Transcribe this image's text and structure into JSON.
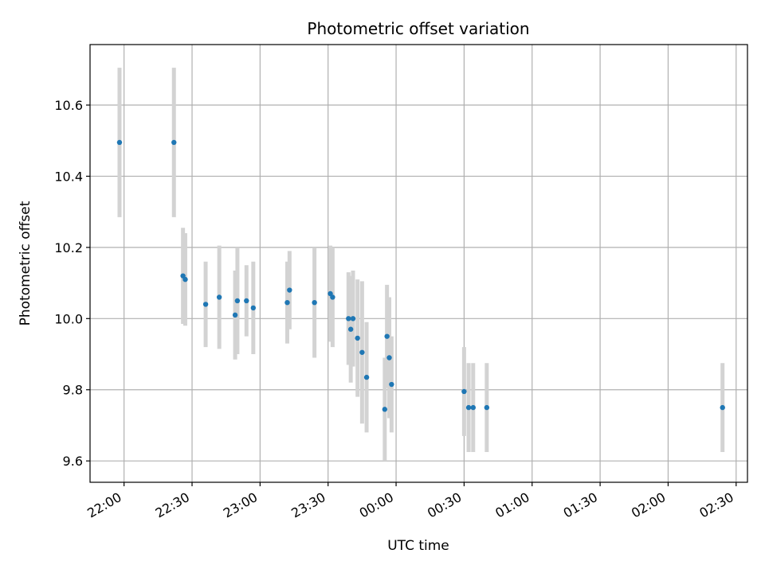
{
  "chart_data": {
    "type": "scatter",
    "title": "Photometric offset variation",
    "xlabel": "UTC time",
    "ylabel": "Photometric offset",
    "x_ticks": [
      "22:00",
      "22:30",
      "23:00",
      "23:30",
      "00:00",
      "00:30",
      "01:00",
      "01:30",
      "02:00",
      "02:30"
    ],
    "y_ticks": [
      "9.6",
      "9.8",
      "10.0",
      "10.2",
      "10.4",
      "10.6"
    ],
    "xlim": [
      "21:45",
      "02:35"
    ],
    "ylim": [
      9.54,
      10.77
    ],
    "grid": true,
    "colors": {
      "point": "#1f77b4",
      "errorbar": "#d3d3d3",
      "grid": "#b0b0b0"
    },
    "points": [
      {
        "x": "21:58",
        "y": 10.495,
        "err": 0.21
      },
      {
        "x": "22:22",
        "y": 10.495,
        "err": 0.21
      },
      {
        "x": "22:26",
        "y": 10.12,
        "err": 0.135
      },
      {
        "x": "22:27",
        "y": 10.11,
        "err": 0.13
      },
      {
        "x": "22:36",
        "y": 10.04,
        "err": 0.12
      },
      {
        "x": "22:42",
        "y": 10.06,
        "err": 0.145
      },
      {
        "x": "22:49",
        "y": 10.01,
        "err": 0.125
      },
      {
        "x": "22:50",
        "y": 10.05,
        "err": 0.15
      },
      {
        "x": "22:54",
        "y": 10.05,
        "err": 0.1
      },
      {
        "x": "22:57",
        "y": 10.03,
        "err": 0.13
      },
      {
        "x": "23:12",
        "y": 10.045,
        "err": 0.115
      },
      {
        "x": "23:13",
        "y": 10.08,
        "err": 0.11
      },
      {
        "x": "23:24",
        "y": 10.045,
        "err": 0.155
      },
      {
        "x": "23:31",
        "y": 10.07,
        "err": 0.135
      },
      {
        "x": "23:32",
        "y": 10.06,
        "err": 0.14
      },
      {
        "x": "23:39",
        "y": 10.0,
        "err": 0.13
      },
      {
        "x": "23:40",
        "y": 9.97,
        "err": 0.15
      },
      {
        "x": "23:41",
        "y": 10.0,
        "err": 0.135
      },
      {
        "x": "23:43",
        "y": 9.945,
        "err": 0.165
      },
      {
        "x": "23:45",
        "y": 9.905,
        "err": 0.2
      },
      {
        "x": "23:47",
        "y": 9.835,
        "err": 0.155
      },
      {
        "x": "23:55",
        "y": 9.745,
        "err": 0.145
      },
      {
        "x": "23:56",
        "y": 9.95,
        "err": 0.145
      },
      {
        "x": "23:57",
        "y": 9.89,
        "err": 0.17
      },
      {
        "x": "23:58",
        "y": 9.815,
        "err": 0.135
      },
      {
        "x": "00:30",
        "y": 9.795,
        "err": 0.125
      },
      {
        "x": "00:32",
        "y": 9.75,
        "err": 0.125
      },
      {
        "x": "00:34",
        "y": 9.75,
        "err": 0.125
      },
      {
        "x": "00:40",
        "y": 9.75,
        "err": 0.125
      },
      {
        "x": "02:24",
        "y": 9.75,
        "err": 0.125
      }
    ]
  }
}
